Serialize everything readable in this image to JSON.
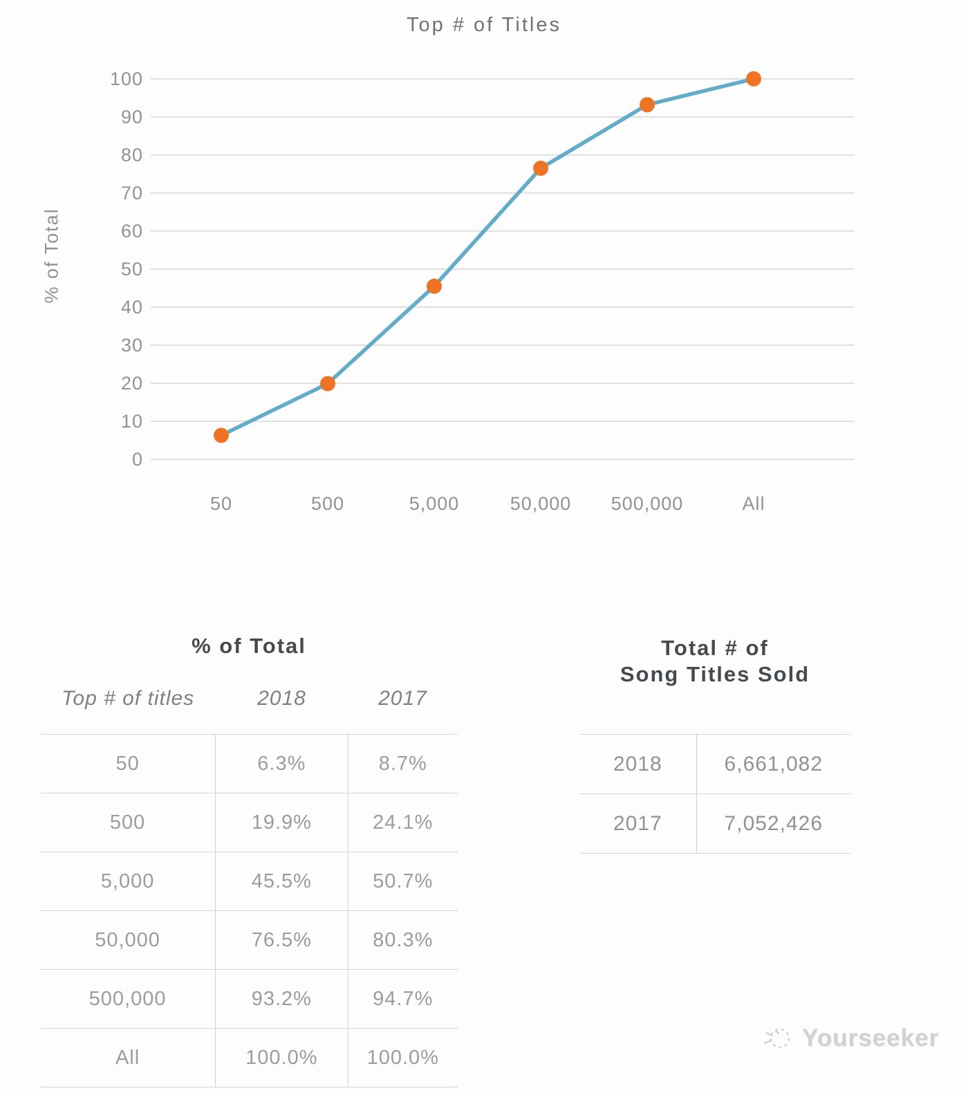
{
  "chart_data": {
    "type": "line",
    "title": "Top # of Titles",
    "xlabel": "",
    "ylabel": "% of Total",
    "categories": [
      "50",
      "500",
      "5,000",
      "50,000",
      "500,000",
      "All"
    ],
    "series": [
      {
        "name": "2018",
        "values": [
          6.3,
          19.9,
          45.5,
          76.5,
          93.2,
          100.0
        ]
      }
    ],
    "ylim": [
      0,
      100
    ],
    "y_ticks": [
      0,
      10,
      20,
      30,
      40,
      50,
      60,
      70,
      80,
      90,
      100
    ],
    "grid": true,
    "legend": false,
    "line_color": "#62ABC9",
    "marker_color": "#EF7325",
    "gridline_color": "#d6d6d6"
  },
  "tables": {
    "percent_table": {
      "title": "% of Total",
      "columns": [
        "Top # of titles",
        "2018",
        "2017"
      ],
      "rows": [
        [
          "50",
          "6.3%",
          "8.7%"
        ],
        [
          "500",
          "19.9%",
          "24.1%"
        ],
        [
          "5,000",
          "45.5%",
          "50.7%"
        ],
        [
          "50,000",
          "76.5%",
          "80.3%"
        ],
        [
          "500,000",
          "93.2%",
          "94.7%"
        ],
        [
          "All",
          "100.0%",
          "100.0%"
        ]
      ]
    },
    "totals_table": {
      "title_line1": "Total # of",
      "title_line2": "Song Titles Sold",
      "rows": [
        [
          "2018",
          "6,661,082"
        ],
        [
          "2017",
          "7,052,426"
        ]
      ]
    }
  },
  "footer": {
    "brand": "Yourseeker"
  }
}
